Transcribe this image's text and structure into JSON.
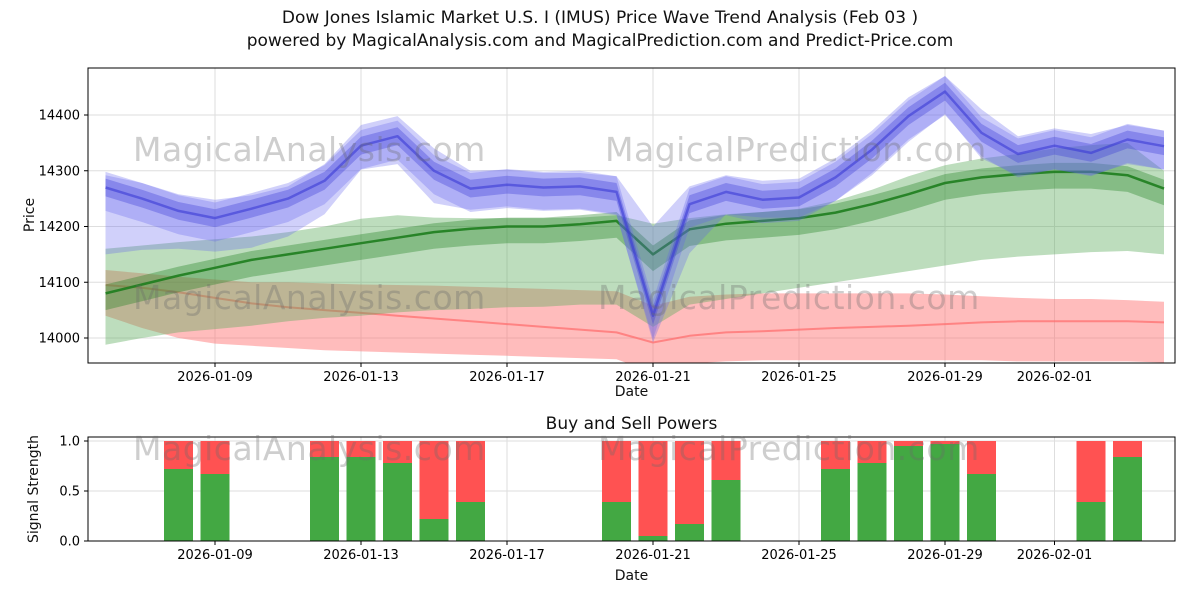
{
  "watermarks": {
    "analysis": "MagicalAnalysis.com",
    "prediction": "MagicalPrediction.com"
  },
  "chart_data": [
    {
      "type": "area",
      "name": "price-wave-trend",
      "title": "Dow Jones Islamic Market U.S. I (IMUS) Price Wave Trend Analysis (Feb 03 )",
      "subtitle": "powered by MagicalAnalysis.com and MagicalPrediction.com and Predict-Price.com",
      "xlabel": "Date",
      "ylabel": "Price",
      "ylim": [
        13950,
        14485
      ],
      "grid": true,
      "x_start_date": "2026-01-06",
      "x_step_days": 1,
      "ytick_values": [
        14000,
        14100,
        14200,
        14300,
        14400
      ],
      "ytick_labels": [
        "14000",
        "14100",
        "14200",
        "14300",
        "14400"
      ],
      "xtick_dates": [
        "2026-01-09",
        "2026-01-13",
        "2026-01-17",
        "2026-01-21",
        "2026-01-25",
        "2026-01-29",
        "2026-02-01"
      ],
      "xtick_labels": [
        "2026-01-09",
        "2026-01-13",
        "2026-01-17",
        "2026-01-21",
        "2026-01-25",
        "2026-01-29",
        "2026-02-01"
      ],
      "colors": {
        "blue": "#6464f0",
        "blue_dark": "#3b3bd6",
        "green_light": "#5aab5a",
        "green_dark": "#1e7d1e",
        "red": "#ff6b6b"
      },
      "series": [
        {
          "name": "blue-wave-core",
          "color": "#3b3bd6",
          "values": [
            14270,
            14250,
            14228,
            14215,
            14232,
            14250,
            14282,
            14345,
            14362,
            14300,
            14268,
            14275,
            14270,
            14272,
            14262,
            14040,
            14240,
            14262,
            14248,
            14252,
            14288,
            14338,
            14398,
            14442,
            14368,
            14330,
            14345,
            14332,
            14356,
            14344
          ]
        },
        {
          "name": "blue-wave-band-upper",
          "color": "#6464f0",
          "values": [
            14292,
            14278,
            14258,
            14248,
            14256,
            14272,
            14312,
            14382,
            14398,
            14340,
            14300,
            14302,
            14296,
            14296,
            14290,
            14200,
            14272,
            14292,
            14282,
            14286,
            14322,
            14372,
            14432,
            14470,
            14410,
            14362,
            14376,
            14366,
            14382,
            14372
          ]
        },
        {
          "name": "blue-wave-band-lower",
          "color": "#6464f0",
          "values": [
            14150,
            14158,
            14160,
            14155,
            14162,
            14182,
            14222,
            14302,
            14312,
            14242,
            14230,
            14236,
            14230,
            14232,
            14222,
            13992,
            14152,
            14222,
            14216,
            14216,
            14246,
            14292,
            14352,
            14402,
            14322,
            14292,
            14302,
            14292,
            14312,
            14302
          ]
        },
        {
          "name": "green-trend-core",
          "color": "#1e7d1e",
          "values": [
            14080,
            14096,
            14112,
            14126,
            14140,
            14150,
            14160,
            14170,
            14180,
            14190,
            14196,
            14200,
            14200,
            14204,
            14210,
            14150,
            14195,
            14205,
            14210,
            14215,
            14225,
            14240,
            14258,
            14278,
            14288,
            14294,
            14298,
            14298,
            14292,
            14268
          ]
        },
        {
          "name": "green-band-upper",
          "color": "#5aab5a",
          "values": [
            14160,
            14166,
            14172,
            14177,
            14182,
            14190,
            14200,
            14214,
            14220,
            14216,
            14215,
            14215,
            14215,
            14216,
            14220,
            14205,
            14215,
            14222,
            14226,
            14232,
            14246,
            14266,
            14290,
            14310,
            14322,
            14330,
            14340,
            14346,
            14350,
            14300
          ]
        },
        {
          "name": "green-band-lower",
          "color": "#5aab5a",
          "values": [
            13988,
            14000,
            14010,
            14016,
            14022,
            14030,
            14036,
            14040,
            14046,
            14050,
            14052,
            14055,
            14056,
            14060,
            14060,
            14020,
            14060,
            14070,
            14080,
            14090,
            14100,
            14110,
            14120,
            14130,
            14140,
            14146,
            14150,
            14154,
            14156,
            14150
          ]
        },
        {
          "name": "red-support-core",
          "color": "#ff6b6b",
          "values": [
            14095,
            14090,
            14082,
            14072,
            14062,
            14055,
            14050,
            14045,
            14040,
            14035,
            14030,
            14025,
            14020,
            14015,
            14010,
            13992,
            14004,
            14010,
            14012,
            14015,
            14018,
            14020,
            14022,
            14025,
            14028,
            14030,
            14030,
            14030,
            14030,
            14028
          ]
        },
        {
          "name": "red-band-upper",
          "color": "#ff6b6b",
          "values": [
            14122,
            14116,
            14110,
            14105,
            14100,
            14100,
            14098,
            14096,
            14095,
            14094,
            14092,
            14090,
            14088,
            14086,
            14084,
            14058,
            14074,
            14078,
            14080,
            14080,
            14080,
            14080,
            14080,
            14078,
            14075,
            14072,
            14070,
            14070,
            14068,
            14065
          ]
        },
        {
          "name": "red-band-lower",
          "color": "#ff6b6b",
          "values": [
            14040,
            14018,
            14000,
            13990,
            13986,
            13982,
            13978,
            13976,
            13974,
            13972,
            13970,
            13968,
            13966,
            13964,
            13962,
            13938,
            13954,
            13958,
            13960,
            13960,
            13960,
            13960,
            13960,
            13960,
            13960,
            13958,
            13958,
            13958,
            13958,
            13956
          ]
        }
      ]
    },
    {
      "type": "bar",
      "name": "buy-sell-powers",
      "title": "Buy and Sell Powers",
      "xlabel": "Date",
      "ylabel": "Signal Strength",
      "ylim": [
        0,
        1.05
      ],
      "grid": true,
      "ytick_values": [
        0,
        0.5,
        1
      ],
      "ytick_labels": [
        "0.0",
        "0.5",
        "1.0"
      ],
      "xtick_dates": [
        "2026-01-09",
        "2026-01-13",
        "2026-01-17",
        "2026-01-21",
        "2026-01-25",
        "2026-01-29",
        "2026-02-01"
      ],
      "xtick_labels": [
        "2026-01-09",
        "2026-01-13",
        "2026-01-17",
        "2026-01-21",
        "2026-01-25",
        "2026-01-29",
        "2026-02-01"
      ],
      "colors": {
        "buy": "#43a843",
        "sell": "#ff5252"
      },
      "bars": [
        {
          "date": "2026-01-08",
          "buy": 0.72,
          "sell": 0.28
        },
        {
          "date": "2026-01-09",
          "buy": 0.67,
          "sell": 0.33
        },
        {
          "date": "2026-01-12",
          "buy": 0.84,
          "sell": 0.16
        },
        {
          "date": "2026-01-13",
          "buy": 0.84,
          "sell": 0.16
        },
        {
          "date": "2026-01-14",
          "buy": 0.78,
          "sell": 0.22
        },
        {
          "date": "2026-01-15",
          "buy": 0.22,
          "sell": 0.78
        },
        {
          "date": "2026-01-16",
          "buy": 0.39,
          "sell": 0.61
        },
        {
          "date": "2026-01-20",
          "buy": 0.39,
          "sell": 0.61
        },
        {
          "date": "2026-01-21",
          "buy": 0.05,
          "sell": 0.95
        },
        {
          "date": "2026-01-22",
          "buy": 0.17,
          "sell": 0.83
        },
        {
          "date": "2026-01-23",
          "buy": 0.61,
          "sell": 0.39
        },
        {
          "date": "2026-01-26",
          "buy": 0.72,
          "sell": 0.28
        },
        {
          "date": "2026-01-27",
          "buy": 0.78,
          "sell": 0.22
        },
        {
          "date": "2026-01-28",
          "buy": 0.95,
          "sell": 0.05
        },
        {
          "date": "2026-01-29",
          "buy": 0.97,
          "sell": 0.03
        },
        {
          "date": "2026-01-30",
          "buy": 0.67,
          "sell": 0.33
        },
        {
          "date": "2026-02-02",
          "buy": 0.39,
          "sell": 0.61
        },
        {
          "date": "2026-02-03",
          "buy": 0.84,
          "sell": 0.16
        }
      ]
    }
  ]
}
